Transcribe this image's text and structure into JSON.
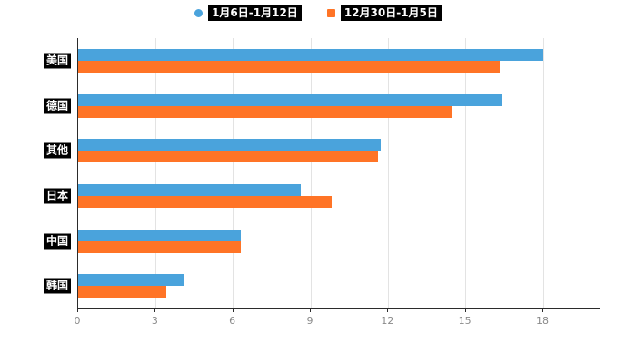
{
  "chart_data": {
    "type": "bar",
    "orientation": "horizontal",
    "title": "",
    "xlabel": "",
    "ylabel": "",
    "categories": [
      "美国",
      "德国",
      "其他",
      "日本",
      "中国",
      "韩国"
    ],
    "series": [
      {
        "name": "1月6日-1月12日",
        "color": "#4aa3dc",
        "marker": "circle",
        "values": [
          18.0,
          16.4,
          11.7,
          8.6,
          6.3,
          4.1
        ]
      },
      {
        "name": "12月30日-1月5日",
        "color": "#ff7426",
        "marker": "square",
        "values": [
          16.3,
          14.5,
          11.6,
          9.8,
          6.3,
          3.4
        ]
      }
    ],
    "xlim": [
      0,
      18
    ],
    "xticks": [
      0,
      3,
      6,
      9,
      12,
      15,
      18
    ],
    "grid": true,
    "legend_position": "top",
    "axis_color": "#2b2b2b",
    "gridline_color": "#e3e3e3",
    "tick_label_color": "#8a8a8a",
    "label_chip_bg": "#000000",
    "label_chip_fg": "#ffffff"
  }
}
